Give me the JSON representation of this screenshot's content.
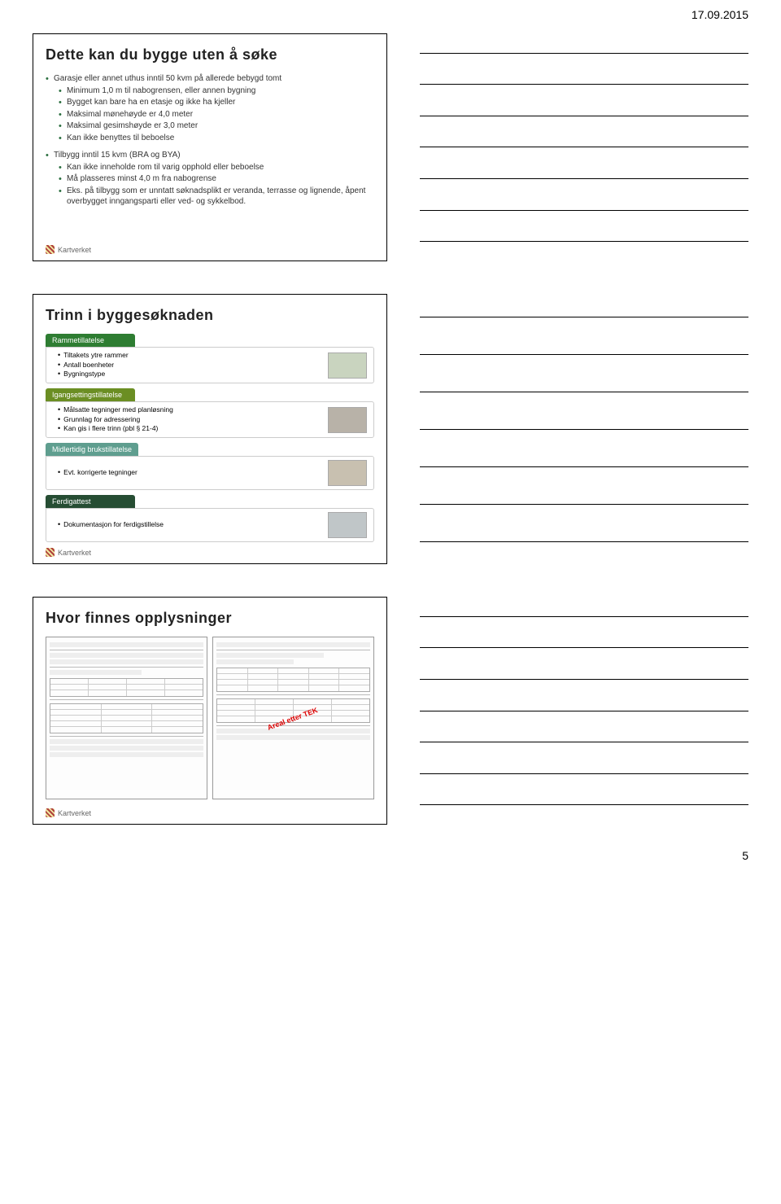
{
  "header_date": "17.09.2015",
  "page_number": "5",
  "logo_text": "Kartverket",
  "slide1": {
    "title": "Dette kan du bygge uten å søke",
    "group1_lead": "Garasje eller annet uthus inntil 50 kvm på allerede bebygd tomt",
    "group1_items": [
      "Minimum 1,0 m til nabogrensen, eller annen bygning",
      "Bygget kan bare ha en etasje og ikke ha kjeller",
      "Maksimal mønehøyde er 4,0 meter",
      "Maksimal gesimshøyde er 3,0 meter",
      "Kan ikke benyttes til beboelse"
    ],
    "group2_lead": "Tilbygg inntil 15 kvm (BRA og BYA)",
    "group2_items": [
      "Kan ikke inneholde rom til varig opphold eller beboelse",
      "Må plasseres minst 4,0 m fra nabogrense",
      "Eks. på tilbygg som er unntatt søknadsplikt er veranda, terrasse og lignende, åpent overbygget inngangsparti eller ved- og sykkelbod."
    ]
  },
  "slide2": {
    "title": "Trinn i byggesøknaden",
    "stages": [
      {
        "head": "Rammetillatelse",
        "color_class": "st-green",
        "items": [
          "Tiltakets ytre rammer",
          "Antall boenheter",
          "Bygningstype"
        ],
        "thumb_class": "empty-thumb-a"
      },
      {
        "head": "Igangsettingstillatelse",
        "color_class": "st-olive",
        "items": [
          "Målsatte tegninger med planløsning",
          "Grunnlag for adressering",
          "Kan gis i flere trinn (pbl § 21-4)"
        ],
        "thumb_class": "empty-thumb-b"
      },
      {
        "head": "Midlertidig brukstillatelse",
        "color_class": "st-teal",
        "items": [
          "Evt. korrigerte tegninger"
        ],
        "thumb_class": "empty-thumb-c"
      },
      {
        "head": "Ferdigattest",
        "color_class": "st-dgreen",
        "items": [
          "Dokumentasjon for ferdigstillelse"
        ],
        "thumb_class": "empty-thumb-d"
      }
    ]
  },
  "slide3": {
    "title": "Hvor finnes opplysninger",
    "stamp_text": "Areal etter TEK"
  },
  "note_lines_per_slide": 7,
  "colors": {
    "bullet_color": "#2a6e3f",
    "stamp_color": "#d00"
  }
}
